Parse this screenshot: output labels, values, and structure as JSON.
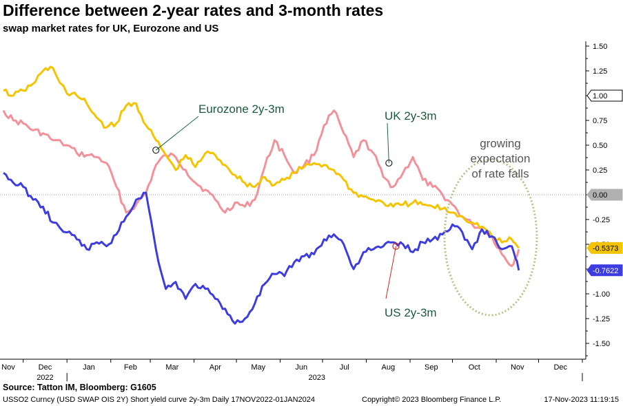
{
  "header": {
    "title": "Difference between 2-year rates and 3-month rates",
    "subtitle": "swap market rates for UK, Eurozone and US"
  },
  "footer": {
    "source": "Source: Tatton IM, Bloomberg: G1605",
    "ticker": "USSO2 Curncy (USD SWAP OIS 2Y) Short yield curve 2y-3m  Daily 17NOV2022-01JAN2024",
    "copyright": "Copyright© 2023 Bloomberg Finance L.P.",
    "timestamp": "17-Nov-2023 11:19:15"
  },
  "colors": {
    "uk": "#f4909a",
    "eurozone": "#f5c400",
    "us": "#3c3ce0",
    "ellipse": "#bdbd88",
    "zero_line": "#999999"
  },
  "chart_data": {
    "type": "line",
    "title": "Difference between 2-year rates and 3-month rates",
    "subtitle": "swap market rates for UK, Eurozone and US",
    "ylim": [
      -1.6,
      1.6
    ],
    "y_ticks": [
      "1.50",
      "1.25",
      "1.00",
      "0.75",
      "0.50",
      "0.25",
      "0.00",
      "-0.25",
      "-0.50",
      "-0.75",
      "-1.00",
      "-1.25",
      "-1.50"
    ],
    "y_tick_values": [
      1.5,
      1.25,
      1.0,
      0.75,
      0.5,
      0.25,
      0.0,
      -0.25,
      -0.5,
      -0.75,
      -1.0,
      -1.25,
      -1.5
    ],
    "x_months": [
      "Nov",
      "Dec",
      "Jan",
      "Feb",
      "Mar",
      "Apr",
      "May",
      "Jun",
      "Jul",
      "Aug",
      "Sep",
      "Oct",
      "Nov",
      "Dec"
    ],
    "x_years": [
      {
        "label": "2022",
        "month": "Dec"
      },
      {
        "label": "2023",
        "month": "Jul"
      }
    ],
    "xlim": [
      "2022-11-17",
      "2024-01-01"
    ],
    "grid": false,
    "series": [
      {
        "key": "uk",
        "name": "UK 2y-3m",
        "dates": [
          "2022-11-17",
          "2022-11-24",
          "2022-12-01",
          "2022-12-08",
          "2022-12-15",
          "2022-12-22",
          "2023-01-01",
          "2023-01-08",
          "2023-01-15",
          "2023-01-22",
          "2023-01-29",
          "2023-02-05",
          "2023-02-12",
          "2023-02-19",
          "2023-02-26",
          "2023-03-05",
          "2023-03-12",
          "2023-03-19",
          "2023-03-26",
          "2023-04-02",
          "2023-04-09",
          "2023-04-16",
          "2023-04-23",
          "2023-04-30",
          "2023-05-07",
          "2023-05-14",
          "2023-05-21",
          "2023-05-28",
          "2023-06-04",
          "2023-06-11",
          "2023-06-18",
          "2023-06-25",
          "2023-07-02",
          "2023-07-09",
          "2023-07-16",
          "2023-07-23",
          "2023-07-30",
          "2023-08-06",
          "2023-08-13",
          "2023-08-20",
          "2023-08-27",
          "2023-09-03",
          "2023-09-10",
          "2023-09-17",
          "2023-09-24",
          "2023-10-01",
          "2023-10-08",
          "2023-10-15",
          "2023-10-22",
          "2023-10-29",
          "2023-11-05",
          "2023-11-12",
          "2023-11-17"
        ],
        "values": [
          0.85,
          0.75,
          0.72,
          0.65,
          0.62,
          0.55,
          0.5,
          0.42,
          0.4,
          0.38,
          0.32,
          0.08,
          -0.18,
          -0.1,
          0.02,
          0.3,
          0.4,
          0.38,
          0.25,
          0.12,
          0.05,
          -0.05,
          -0.18,
          -0.08,
          -0.12,
          -0.05,
          0.28,
          0.55,
          0.4,
          0.22,
          0.3,
          0.4,
          0.7,
          0.85,
          0.62,
          0.38,
          0.55,
          0.42,
          0.18,
          0.08,
          0.22,
          0.38,
          0.15,
          0.08,
          0.0,
          -0.1,
          -0.22,
          -0.3,
          -0.35,
          -0.42,
          -0.6,
          -0.72,
          -0.55
        ]
      },
      {
        "key": "eurozone",
        "name": "Eurozone 2y-3m",
        "dates": [
          "2022-11-17",
          "2022-11-24",
          "2022-12-01",
          "2022-12-08",
          "2022-12-15",
          "2022-12-22",
          "2023-01-01",
          "2023-01-08",
          "2023-01-15",
          "2023-01-22",
          "2023-01-29",
          "2023-02-05",
          "2023-02-12",
          "2023-02-19",
          "2023-02-26",
          "2023-03-05",
          "2023-03-12",
          "2023-03-19",
          "2023-03-26",
          "2023-04-02",
          "2023-04-09",
          "2023-04-16",
          "2023-04-23",
          "2023-04-30",
          "2023-05-07",
          "2023-05-14",
          "2023-05-21",
          "2023-05-28",
          "2023-06-04",
          "2023-06-11",
          "2023-06-18",
          "2023-06-25",
          "2023-07-02",
          "2023-07-09",
          "2023-07-16",
          "2023-07-23",
          "2023-07-30",
          "2023-08-06",
          "2023-08-13",
          "2023-08-20",
          "2023-08-27",
          "2023-09-03",
          "2023-09-10",
          "2023-09-17",
          "2023-09-24",
          "2023-10-01",
          "2023-10-08",
          "2023-10-15",
          "2023-10-22",
          "2023-10-29",
          "2023-11-05",
          "2023-11-12",
          "2023-11-17"
        ],
        "values": [
          1.05,
          1.0,
          1.05,
          1.12,
          1.25,
          1.28,
          1.02,
          1.0,
          0.92,
          0.78,
          0.68,
          0.72,
          0.9,
          0.92,
          0.7,
          0.55,
          0.4,
          0.25,
          0.4,
          0.28,
          0.42,
          0.4,
          0.3,
          0.2,
          0.12,
          0.08,
          0.18,
          0.1,
          0.15,
          0.22,
          0.28,
          0.32,
          0.3,
          0.25,
          0.15,
          0.02,
          -0.02,
          -0.05,
          -0.08,
          -0.12,
          -0.1,
          -0.08,
          -0.1,
          -0.12,
          -0.14,
          -0.18,
          -0.22,
          -0.28,
          -0.32,
          -0.42,
          -0.48,
          -0.45,
          -0.5373
        ]
      },
      {
        "key": "us",
        "name": "US 2y-3m",
        "dates": [
          "2022-11-17",
          "2022-11-24",
          "2022-12-01",
          "2022-12-08",
          "2022-12-15",
          "2022-12-22",
          "2023-01-01",
          "2023-01-08",
          "2023-01-15",
          "2023-01-22",
          "2023-01-29",
          "2023-02-05",
          "2023-02-12",
          "2023-02-19",
          "2023-02-26",
          "2023-03-05",
          "2023-03-12",
          "2023-03-19",
          "2023-03-26",
          "2023-04-02",
          "2023-04-09",
          "2023-04-16",
          "2023-04-23",
          "2023-04-30",
          "2023-05-07",
          "2023-05-14",
          "2023-05-21",
          "2023-05-28",
          "2023-06-04",
          "2023-06-11",
          "2023-06-18",
          "2023-06-25",
          "2023-07-02",
          "2023-07-09",
          "2023-07-16",
          "2023-07-23",
          "2023-07-30",
          "2023-08-06",
          "2023-08-13",
          "2023-08-20",
          "2023-08-27",
          "2023-09-03",
          "2023-09-10",
          "2023-09-17",
          "2023-09-24",
          "2023-10-01",
          "2023-10-08",
          "2023-10-15",
          "2023-10-22",
          "2023-10-29",
          "2023-11-05",
          "2023-11-12",
          "2023-11-17"
        ],
        "values": [
          0.22,
          0.12,
          0.08,
          -0.05,
          -0.12,
          -0.28,
          -0.38,
          -0.45,
          -0.55,
          -0.48,
          -0.52,
          -0.4,
          -0.22,
          -0.05,
          0.02,
          -0.55,
          -0.95,
          -0.88,
          -1.05,
          -0.9,
          -0.95,
          -1.05,
          -1.15,
          -1.3,
          -1.25,
          -1.1,
          -0.9,
          -0.8,
          -0.82,
          -0.68,
          -0.62,
          -0.6,
          -0.45,
          -0.4,
          -0.5,
          -0.75,
          -0.58,
          -0.55,
          -0.52,
          -0.48,
          -0.5,
          -0.58,
          -0.48,
          -0.45,
          -0.4,
          -0.3,
          -0.38,
          -0.55,
          -0.35,
          -0.42,
          -0.55,
          -0.52,
          -0.7622
        ]
      }
    ],
    "last_values": [
      {
        "label": "1.00",
        "value": 1.0,
        "style": "outline"
      },
      {
        "label": "0.00",
        "value": 0.0,
        "style": "grey"
      },
      {
        "label": "-0.5373",
        "value": -0.5373,
        "style": "eurozone"
      },
      {
        "label": "-0.7622",
        "value": -0.7622,
        "style": "us"
      }
    ],
    "annotations": [
      {
        "key": "eurozone",
        "label": "Eurozone 2y-3m",
        "date": "2023-03-05",
        "value": 0.45
      },
      {
        "key": "uk",
        "label": "UK 2y-3m",
        "date": "2023-08-17",
        "value": 0.32
      },
      {
        "key": "us",
        "label": "US 2y-3m",
        "date": "2023-08-22",
        "value": -0.52
      },
      {
        "key": "ellipse",
        "label_lines": [
          "growing",
          "expectation",
          "of rate falls"
        ]
      }
    ]
  }
}
